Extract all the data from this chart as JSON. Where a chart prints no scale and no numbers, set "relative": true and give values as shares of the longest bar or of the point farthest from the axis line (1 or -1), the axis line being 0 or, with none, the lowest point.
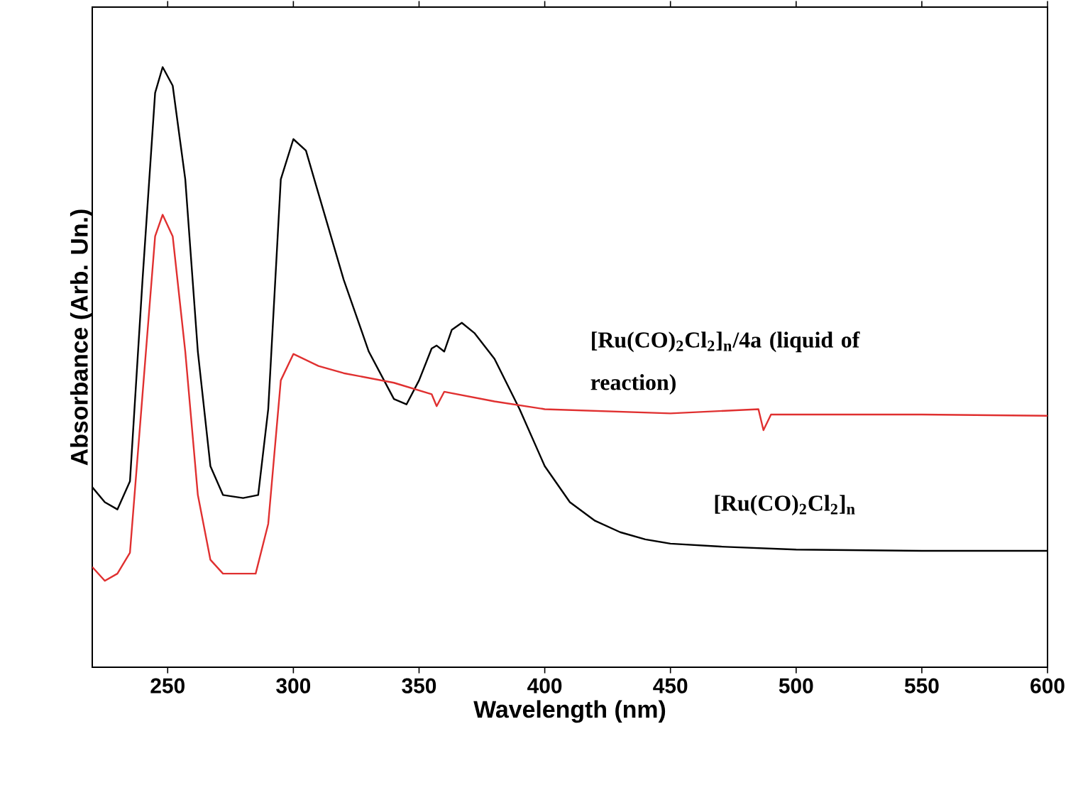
{
  "chart_data": {
    "type": "line",
    "xlabel": "Wavelength (nm)",
    "ylabel": "Absorbance (Arb. Un.)",
    "relative": true,
    "tick_labels": "x",
    "xlim": [
      220,
      600
    ],
    "xticks": [
      250,
      300,
      350,
      400,
      450,
      500,
      550,
      600
    ],
    "series": [
      {
        "name": "[Ru(CO)$_{2}$Cl$_{2}$]$_{n}$",
        "color": "#000000",
        "x": [
          220,
          225,
          230,
          235,
          240,
          245,
          248,
          252,
          257,
          262,
          267,
          272,
          280,
          286,
          290,
          295,
          300,
          305,
          310,
          320,
          330,
          340,
          345,
          350,
          355,
          357,
          360,
          363,
          367,
          372,
          380,
          390,
          400,
          410,
          420,
          430,
          440,
          450,
          470,
          500,
          550,
          600
        ],
        "values": [
          0.3,
          0.275,
          0.263,
          0.31,
          0.646,
          0.957,
          1.0,
          0.969,
          0.813,
          0.526,
          0.335,
          0.287,
          0.282,
          0.287,
          0.43,
          0.813,
          0.88,
          0.861,
          0.789,
          0.646,
          0.526,
          0.447,
          0.438,
          0.478,
          0.531,
          0.536,
          0.526,
          0.562,
          0.574,
          0.557,
          0.514,
          0.43,
          0.335,
          0.275,
          0.244,
          0.225,
          0.213,
          0.206,
          0.201,
          0.196,
          0.194,
          0.194
        ]
      },
      {
        "name": "[Ru(CO)$_{2}$Cl$_{2}$]$_{n}$/4a    (liquid of reaction)",
        "color": "#e03030",
        "x": [
          220,
          225,
          230,
          235,
          240,
          245,
          248,
          252,
          257,
          262,
          267,
          272,
          285,
          290,
          295,
          300,
          310,
          320,
          340,
          355,
          357,
          360,
          380,
          400,
          450,
          485,
          487,
          490,
          550,
          600
        ],
        "values": [
          0.167,
          0.144,
          0.156,
          0.191,
          0.455,
          0.718,
          0.754,
          0.718,
          0.526,
          0.287,
          0.179,
          0.156,
          0.156,
          0.239,
          0.478,
          0.522,
          0.502,
          0.49,
          0.474,
          0.455,
          0.435,
          0.459,
          0.443,
          0.43,
          0.423,
          0.43,
          0.395,
          0.421,
          0.421,
          0.419
        ]
      }
    ]
  }
}
